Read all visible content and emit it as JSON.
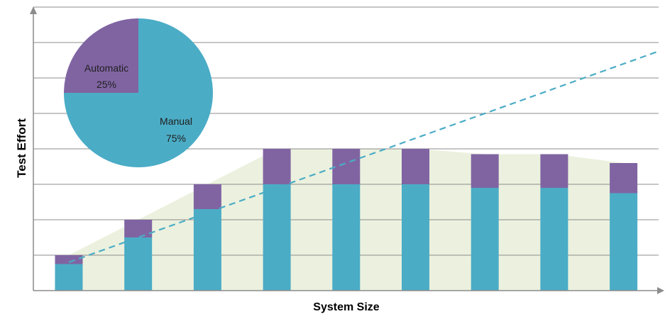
{
  "chart_data": {
    "type": "bar",
    "stacked": true,
    "xlabel": "System Size",
    "ylabel": "Test Effort",
    "ylim": [
      0,
      8
    ],
    "grid": true,
    "tick_labels": "none",
    "categories": [
      "",
      "",
      "",
      "",
      "",
      "",
      "",
      "",
      ""
    ],
    "series": [
      {
        "color": "#4bacc6",
        "values": [
          0.75,
          1.5,
          2.3,
          3.0,
          3.0,
          3.0,
          2.9,
          2.9,
          2.75
        ]
      },
      {
        "color": "#8064a2",
        "values": [
          0.25,
          0.5,
          0.7,
          1.0,
          1.0,
          1.0,
          0.95,
          0.95,
          0.85
        ]
      }
    ],
    "background_area": {
      "color": "#ebf1de",
      "values": [
        1.0,
        2.0,
        3.0,
        4.0,
        4.0,
        4.0,
        3.85,
        3.85,
        3.6
      ]
    },
    "trend_line": {
      "color": "#4bacc6",
      "style": "dashed",
      "start": [
        0,
        0.8
      ],
      "end": [
        8.5,
        6.75
      ]
    },
    "inset_pie": {
      "slices": [
        {
          "label": "Automatic",
          "value": 25,
          "value_label": "25%",
          "color": "#8064a2"
        },
        {
          "label": "Manual",
          "value": 75,
          "value_label": "75%",
          "color": "#4bacc6"
        }
      ]
    }
  },
  "colors": {
    "grid": "#8c8c8c",
    "axis": "#8c8c8c"
  }
}
